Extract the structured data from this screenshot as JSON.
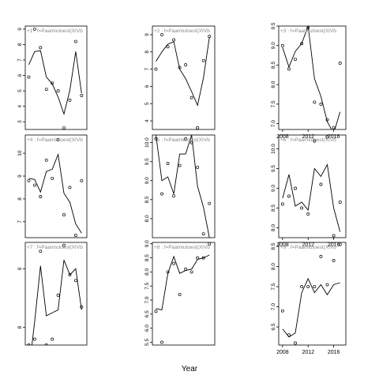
{
  "figure": {
    "xlabel": "Year"
  },
  "chart_data": [
    {
      "type": "line",
      "strip": "+1 : f=Paamiutoest(XIVb",
      "x": [
        2008,
        2009,
        2010,
        2011,
        2012,
        2013,
        2014,
        2015,
        2016,
        2017
      ],
      "points": [
        5.9,
        9.0,
        7.8,
        5.1,
        5.5,
        5.0,
        2.6,
        4.4,
        8.2,
        4.7
      ],
      "fit": [
        6.7,
        7.55,
        7.6,
        5.9,
        5.45,
        4.6,
        3.5,
        5.05,
        7.55,
        4.85
      ],
      "ylim": [
        2.5,
        9.2
      ],
      "yticks": [
        3,
        4,
        5,
        6,
        7,
        8,
        9
      ],
      "xlim": [
        2007.4,
        2017.9
      ],
      "xticks": []
    },
    {
      "type": "line",
      "strip": "+4 : f=Paamiutoest(XIVb",
      "x": [
        2008,
        2009,
        2010,
        2011,
        2012,
        2013,
        2014,
        2015,
        2016,
        2017
      ],
      "points": [
        8.8,
        8.6,
        8.1,
        9.7,
        8.9,
        10.6,
        7.3,
        8.5,
        6.4,
        8.8
      ],
      "fit": [
        8.9,
        8.85,
        8.3,
        9.2,
        9.3,
        9.95,
        8.25,
        7.85,
        6.9,
        6.5
      ],
      "ylim": [
        6.3,
        10.8
      ],
      "yticks": [
        7,
        8,
        9,
        10
      ],
      "xlim": [
        2007.4,
        2017.9
      ],
      "xticks": []
    },
    {
      "type": "line",
      "strip": "+7 : f=Paamiutoest(XIVb",
      "x": [
        2008,
        2009,
        2010,
        2011,
        2012,
        2013,
        2014,
        2015,
        2016,
        2017
      ],
      "points": [
        7.7,
        7.8,
        9.3,
        7.7,
        7.8,
        8.55,
        9.4,
        8.9,
        8.8,
        8.35
      ],
      "fit": [
        7.25,
        8.1,
        9.05,
        8.2,
        8.25,
        8.3,
        9.15,
        8.9,
        9.0,
        8.3
      ],
      "ylim": [
        7.7,
        9.45
      ],
      "yticks": [
        8.0,
        9.0
      ],
      "xlim": [
        2007.4,
        2017.9
      ],
      "xticks": []
    },
    {
      "type": "line",
      "strip": "+2 : f=Paamiutoest(XIVb",
      "x": [
        2008,
        2009,
        2010,
        2011,
        2012,
        2013,
        2014,
        2015,
        2016,
        2017
      ],
      "points": [
        7.0,
        9.0,
        8.3,
        8.7,
        7.1,
        7.25,
        5.35,
        3.6,
        7.5,
        8.9
      ],
      "fit": [
        7.45,
        8.0,
        8.45,
        8.6,
        7.0,
        6.45,
        5.7,
        4.9,
        6.5,
        8.85
      ],
      "ylim": [
        3.5,
        9.5
      ],
      "yticks": [
        4,
        5,
        6,
        7,
        8,
        9
      ],
      "xlim": [
        2007.4,
        2017.9
      ],
      "xticks": []
    },
    {
      "type": "line",
      "strip": "+5 : f=Paamiutoest(XIVb",
      "x": [
        2008,
        2009,
        2010,
        2011,
        2012,
        2013,
        2014,
        2015,
        2016,
        2017
      ],
      "points": [
        10.1,
        8.65,
        9.45,
        8.6,
        9.4,
        10.1,
        10.0,
        9.35,
        7.6,
        8.4
      ],
      "fit": [
        10.2,
        9.0,
        9.1,
        8.65,
        9.7,
        9.7,
        10.2,
        8.85,
        8.3,
        7.5
      ],
      "ylim": [
        7.5,
        10.2
      ],
      "yticks": [
        8.0,
        8.5,
        9.0,
        9.5,
        10.0
      ],
      "xlim": [
        2007.4,
        2017.9
      ],
      "xticks": []
    },
    {
      "type": "line",
      "strip": "+8 : f=Paamiutoest(XIVb",
      "x": [
        2008,
        2009,
        2010,
        2011,
        2012,
        2013,
        2014,
        2015,
        2016,
        2017
      ],
      "points": [
        6.6,
        5.5,
        8.0,
        8.3,
        7.2,
        8.1,
        8.0,
        8.5,
        8.5,
        9.0
      ],
      "fit": [
        6.7,
        6.65,
        7.95,
        8.55,
        7.95,
        8.05,
        8.1,
        8.45,
        8.5,
        8.6
      ],
      "ylim": [
        5.4,
        9.05
      ],
      "yticks": [
        5.5,
        6.0,
        6.5,
        7.0,
        7.5,
        8.0,
        8.5,
        9.0
      ],
      "xlim": [
        2007.4,
        2017.9
      ],
      "xticks": []
    },
    {
      "type": "line",
      "strip": "+3 : f=Paamiutoest(XIVb",
      "x": [
        2008,
        2009,
        2010,
        2011,
        2012,
        2013,
        2014,
        2015,
        2016,
        2017
      ],
      "points": [
        9.0,
        8.4,
        8.65,
        9.05,
        9.45,
        7.55,
        7.5,
        7.1,
        6.9,
        8.55
      ],
      "fit": [
        8.95,
        8.45,
        8.85,
        9.05,
        9.5,
        8.15,
        7.7,
        7.05,
        6.75,
        7.3
      ],
      "ylim": [
        6.85,
        9.5
      ],
      "yticks": [
        7.0,
        7.5,
        8.0,
        8.5,
        9.0,
        9.5
      ],
      "xlim": [
        2007.4,
        2017.9
      ],
      "xticks": [
        2008,
        2012,
        2016
      ]
    },
    {
      "type": "line",
      "strip": "+6 : f=Paamiutoest(XIVb",
      "x": [
        2008,
        2009,
        2010,
        2011,
        2012,
        2013,
        2014,
        2015,
        2016,
        2017
      ],
      "points": [
        8.6,
        8.8,
        9.0,
        8.5,
        8.35,
        10.2,
        9.1,
        10.3,
        7.8,
        8.65
      ],
      "fit": [
        8.75,
        9.35,
        8.55,
        8.65,
        8.45,
        9.5,
        9.3,
        9.6,
        8.5,
        7.9
      ],
      "ylim": [
        7.75,
        10.35
      ],
      "yticks": [
        8.0,
        8.5,
        9.0,
        9.5,
        10.0
      ],
      "xlim": [
        2007.4,
        2017.9
      ],
      "xticks": [
        2008,
        2012,
        2016
      ]
    },
    {
      "type": "line",
      "strip": "+9 : f=Paamiutoest(XIVb",
      "x": [
        2008,
        2009,
        2010,
        2011,
        2012,
        2013,
        2014,
        2015,
        2016,
        2017
      ],
      "points": [
        6.9,
        6.3,
        6.1,
        7.5,
        7.5,
        7.5,
        8.25,
        7.55,
        8.15,
        8.55
      ],
      "fit": [
        6.45,
        6.25,
        6.35,
        7.35,
        7.7,
        7.35,
        7.55,
        7.3,
        7.55,
        7.6
      ],
      "ylim": [
        6.05,
        8.6
      ],
      "yticks": [
        6.5,
        7.0,
        7.5,
        8.0,
        8.5
      ],
      "xlim": [
        2007.4,
        2017.9
      ],
      "xticks": [
        2008,
        2012,
        2016
      ]
    }
  ]
}
